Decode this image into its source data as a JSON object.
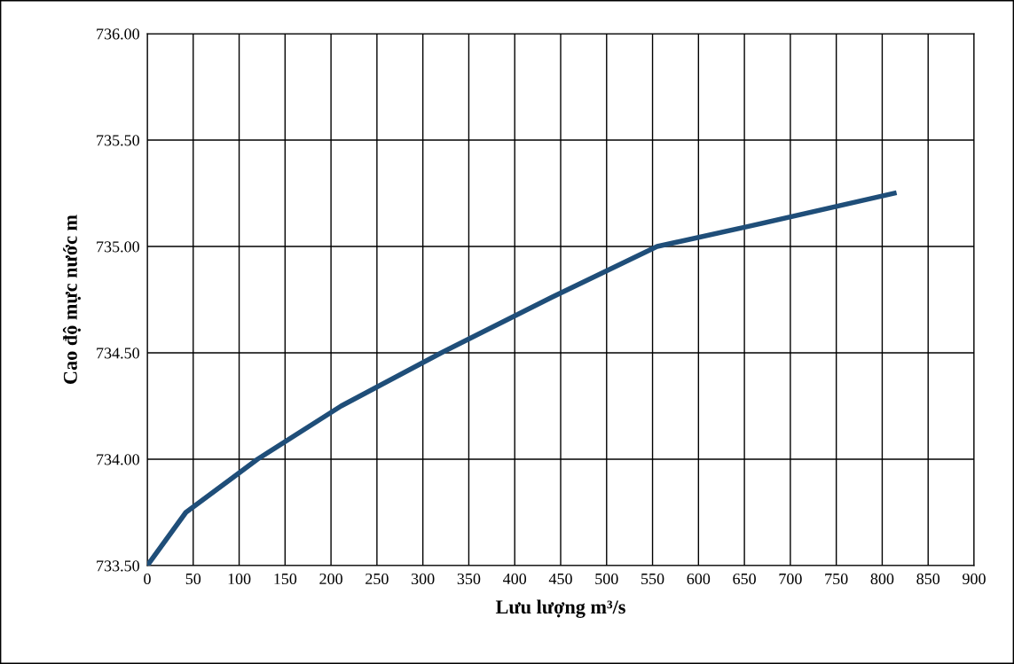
{
  "chart_data": {
    "type": "line",
    "xlabel": "Lưu lượng m³/s",
    "ylabel": "Cao độ mực nước m",
    "x": [
      0,
      42,
      120,
      211,
      320,
      440,
      555,
      650,
      813
    ],
    "series": [
      {
        "color": "#1f4e79",
        "values": [
          733.5,
          733.75,
          734.0,
          734.25,
          734.5,
          734.76,
          735.0,
          735.09,
          735.25
        ]
      }
    ],
    "xlim": [
      0,
      900
    ],
    "xticks": [
      0,
      50,
      100,
      150,
      200,
      250,
      300,
      350,
      400,
      450,
      500,
      550,
      600,
      650,
      700,
      750,
      800,
      850,
      900
    ],
    "ylim": [
      733.5,
      736.0
    ],
    "yticks": [
      {
        "value": 733.5,
        "label": "733.50"
      },
      {
        "value": 734.0,
        "label": "734.00"
      },
      {
        "value": 734.5,
        "label": "734.50"
      },
      {
        "value": 735.0,
        "label": "735.00"
      },
      {
        "value": 735.5,
        "label": "735.50"
      },
      {
        "value": 736.0,
        "label": "736.00"
      }
    ],
    "grid": true,
    "marker": "none",
    "line_style": "solid"
  }
}
